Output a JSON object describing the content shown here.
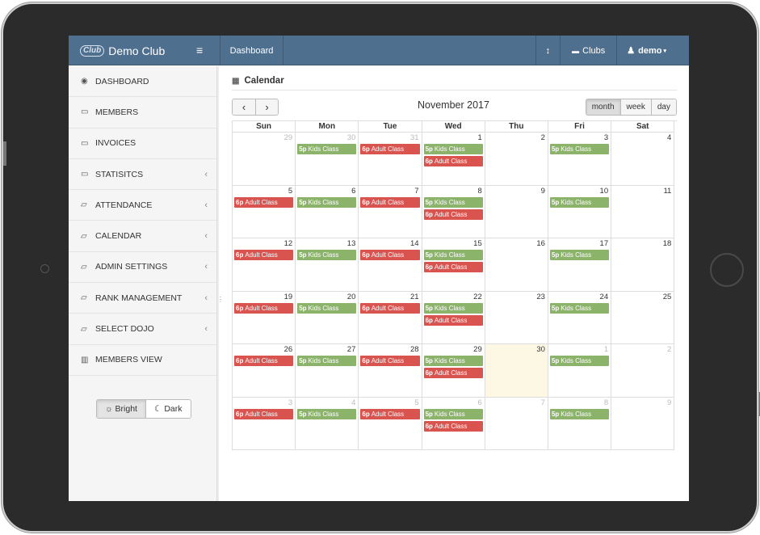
{
  "header": {
    "brand_logo": "Club",
    "brand_name": "Demo Club",
    "menu_icon": "hamburger-icon",
    "dashboard_label": "Dashboard",
    "clubs_label": "Clubs",
    "user_label": "demo"
  },
  "sidebar": {
    "items": [
      {
        "label": "DASHBOARD",
        "icon": "dashboard-icon",
        "arrow": ""
      },
      {
        "label": "MEMBERS",
        "icon": "monitor-icon",
        "arrow": ""
      },
      {
        "label": "INVOICES",
        "icon": "monitor-icon",
        "arrow": ""
      },
      {
        "label": "STATISITCS",
        "icon": "monitor-icon",
        "arrow": "‹"
      },
      {
        "label": "ATTENDANCE",
        "icon": "folder-icon",
        "arrow": "‹"
      },
      {
        "label": "CALENDAR",
        "icon": "folder-icon",
        "arrow": "‹"
      },
      {
        "label": "ADMIN SETTINGS",
        "icon": "folder-icon",
        "arrow": "‹"
      },
      {
        "label": "RANK MANAGEMENT",
        "icon": "folder-icon",
        "arrow": "‹"
      },
      {
        "label": "SELECT DOJO",
        "icon": "folder-icon",
        "arrow": "‹"
      },
      {
        "label": "MEMBERS VIEW",
        "icon": "chart-icon",
        "arrow": ""
      }
    ],
    "theme": {
      "bright": "Bright",
      "dark": "Dark",
      "selected": "Bright"
    }
  },
  "calendar": {
    "page_title": "Calendar",
    "month_title": "November 2017",
    "prev_label": "‹",
    "next_label": "›",
    "views": [
      "month",
      "week",
      "day"
    ],
    "active_view": "month",
    "weekdays": [
      "Sun",
      "Mon",
      "Tue",
      "Wed",
      "Thu",
      "Fri",
      "Sat"
    ],
    "event_types": {
      "kids": {
        "time": "5p",
        "title": "Kids Class",
        "color": "#8bb36a"
      },
      "adult": {
        "time": "6p",
        "title": "Adult Class",
        "color": "#d9534f"
      }
    },
    "weeks": [
      [
        {
          "day": "29",
          "other": true,
          "events": []
        },
        {
          "day": "30",
          "other": true,
          "events": [
            "kids"
          ]
        },
        {
          "day": "31",
          "other": true,
          "events": [
            "adult"
          ]
        },
        {
          "day": "1",
          "other": false,
          "events": [
            "kids",
            "adult"
          ]
        },
        {
          "day": "2",
          "other": false,
          "events": []
        },
        {
          "day": "3",
          "other": false,
          "events": [
            "kids"
          ]
        },
        {
          "day": "4",
          "other": false,
          "events": []
        }
      ],
      [
        {
          "day": "5",
          "other": false,
          "events": [
            "adult"
          ]
        },
        {
          "day": "6",
          "other": false,
          "events": [
            "kids"
          ]
        },
        {
          "day": "7",
          "other": false,
          "events": [
            "adult"
          ]
        },
        {
          "day": "8",
          "other": false,
          "events": [
            "kids",
            "adult"
          ]
        },
        {
          "day": "9",
          "other": false,
          "events": []
        },
        {
          "day": "10",
          "other": false,
          "events": [
            "kids"
          ]
        },
        {
          "day": "11",
          "other": false,
          "events": []
        }
      ],
      [
        {
          "day": "12",
          "other": false,
          "events": [
            "adult"
          ]
        },
        {
          "day": "13",
          "other": false,
          "events": [
            "kids"
          ]
        },
        {
          "day": "14",
          "other": false,
          "events": [
            "adult"
          ]
        },
        {
          "day": "15",
          "other": false,
          "events": [
            "kids",
            "adult"
          ]
        },
        {
          "day": "16",
          "other": false,
          "events": []
        },
        {
          "day": "17",
          "other": false,
          "events": [
            "kids"
          ]
        },
        {
          "day": "18",
          "other": false,
          "events": []
        }
      ],
      [
        {
          "day": "19",
          "other": false,
          "events": [
            "adult"
          ]
        },
        {
          "day": "20",
          "other": false,
          "events": [
            "kids"
          ]
        },
        {
          "day": "21",
          "other": false,
          "events": [
            "adult"
          ]
        },
        {
          "day": "22",
          "other": false,
          "events": [
            "kids",
            "adult"
          ]
        },
        {
          "day": "23",
          "other": false,
          "events": []
        },
        {
          "day": "24",
          "other": false,
          "events": [
            "kids"
          ]
        },
        {
          "day": "25",
          "other": false,
          "events": []
        }
      ],
      [
        {
          "day": "26",
          "other": false,
          "events": [
            "adult"
          ]
        },
        {
          "day": "27",
          "other": false,
          "events": [
            "kids"
          ]
        },
        {
          "day": "28",
          "other": false,
          "events": [
            "adult"
          ]
        },
        {
          "day": "29",
          "other": false,
          "events": [
            "kids",
            "adult"
          ]
        },
        {
          "day": "30",
          "other": false,
          "today": true,
          "events": []
        },
        {
          "day": "1",
          "other": true,
          "events": [
            "kids"
          ]
        },
        {
          "day": "2",
          "other": true,
          "events": []
        }
      ],
      [
        {
          "day": "3",
          "other": true,
          "events": [
            "adult"
          ]
        },
        {
          "day": "4",
          "other": true,
          "events": [
            "kids"
          ]
        },
        {
          "day": "5",
          "other": true,
          "events": [
            "adult"
          ]
        },
        {
          "day": "6",
          "other": true,
          "events": [
            "kids",
            "adult"
          ]
        },
        {
          "day": "7",
          "other": true,
          "events": []
        },
        {
          "day": "8",
          "other": true,
          "events": [
            "kids"
          ]
        },
        {
          "day": "9",
          "other": true,
          "events": []
        }
      ]
    ]
  },
  "colors": {
    "topbar": "#4f6f8f",
    "today_bg": "#fcf8e3",
    "kids_event": "#8bb36a",
    "adult_event": "#d9534f"
  }
}
